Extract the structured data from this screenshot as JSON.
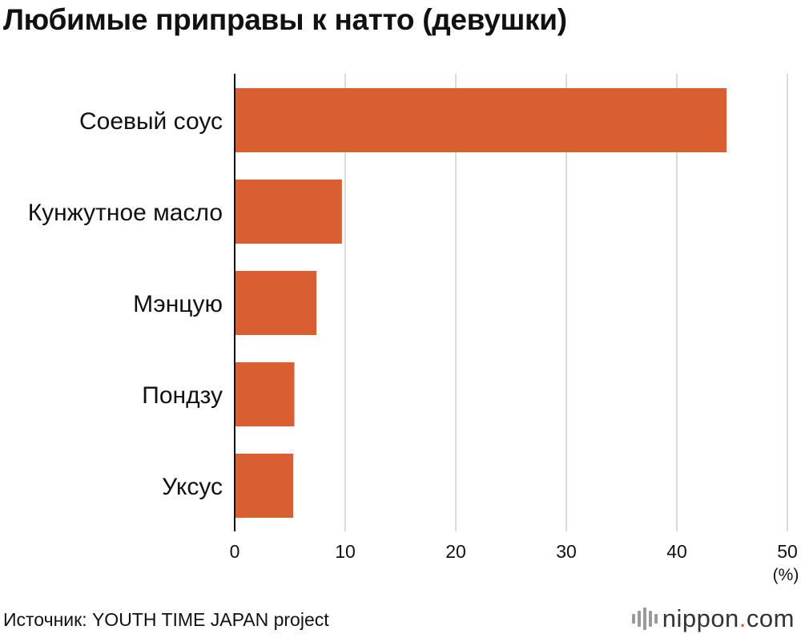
{
  "title": "Любимые приправы к натто (девушки)",
  "source": "Источник: YOUTH TIME JAPAN project",
  "logo": {
    "name": "nippon",
    "dot": ".",
    "tld": "com"
  },
  "colors": {
    "bar": "#d95f33",
    "grid": "#cfcfcf",
    "axis": "#111111"
  },
  "chart_data": {
    "type": "bar",
    "orientation": "horizontal",
    "categories": [
      "Соевый соус",
      "Кунжутное масло",
      "Мэнцую",
      "Пондзу",
      "Уксус"
    ],
    "values": [
      44.5,
      9.7,
      7.4,
      5.4,
      5.3
    ],
    "xlim": [
      0,
      50
    ],
    "xticks": [
      0,
      10,
      20,
      30,
      40,
      50
    ],
    "unit": "(%)",
    "grid": "vertical"
  }
}
